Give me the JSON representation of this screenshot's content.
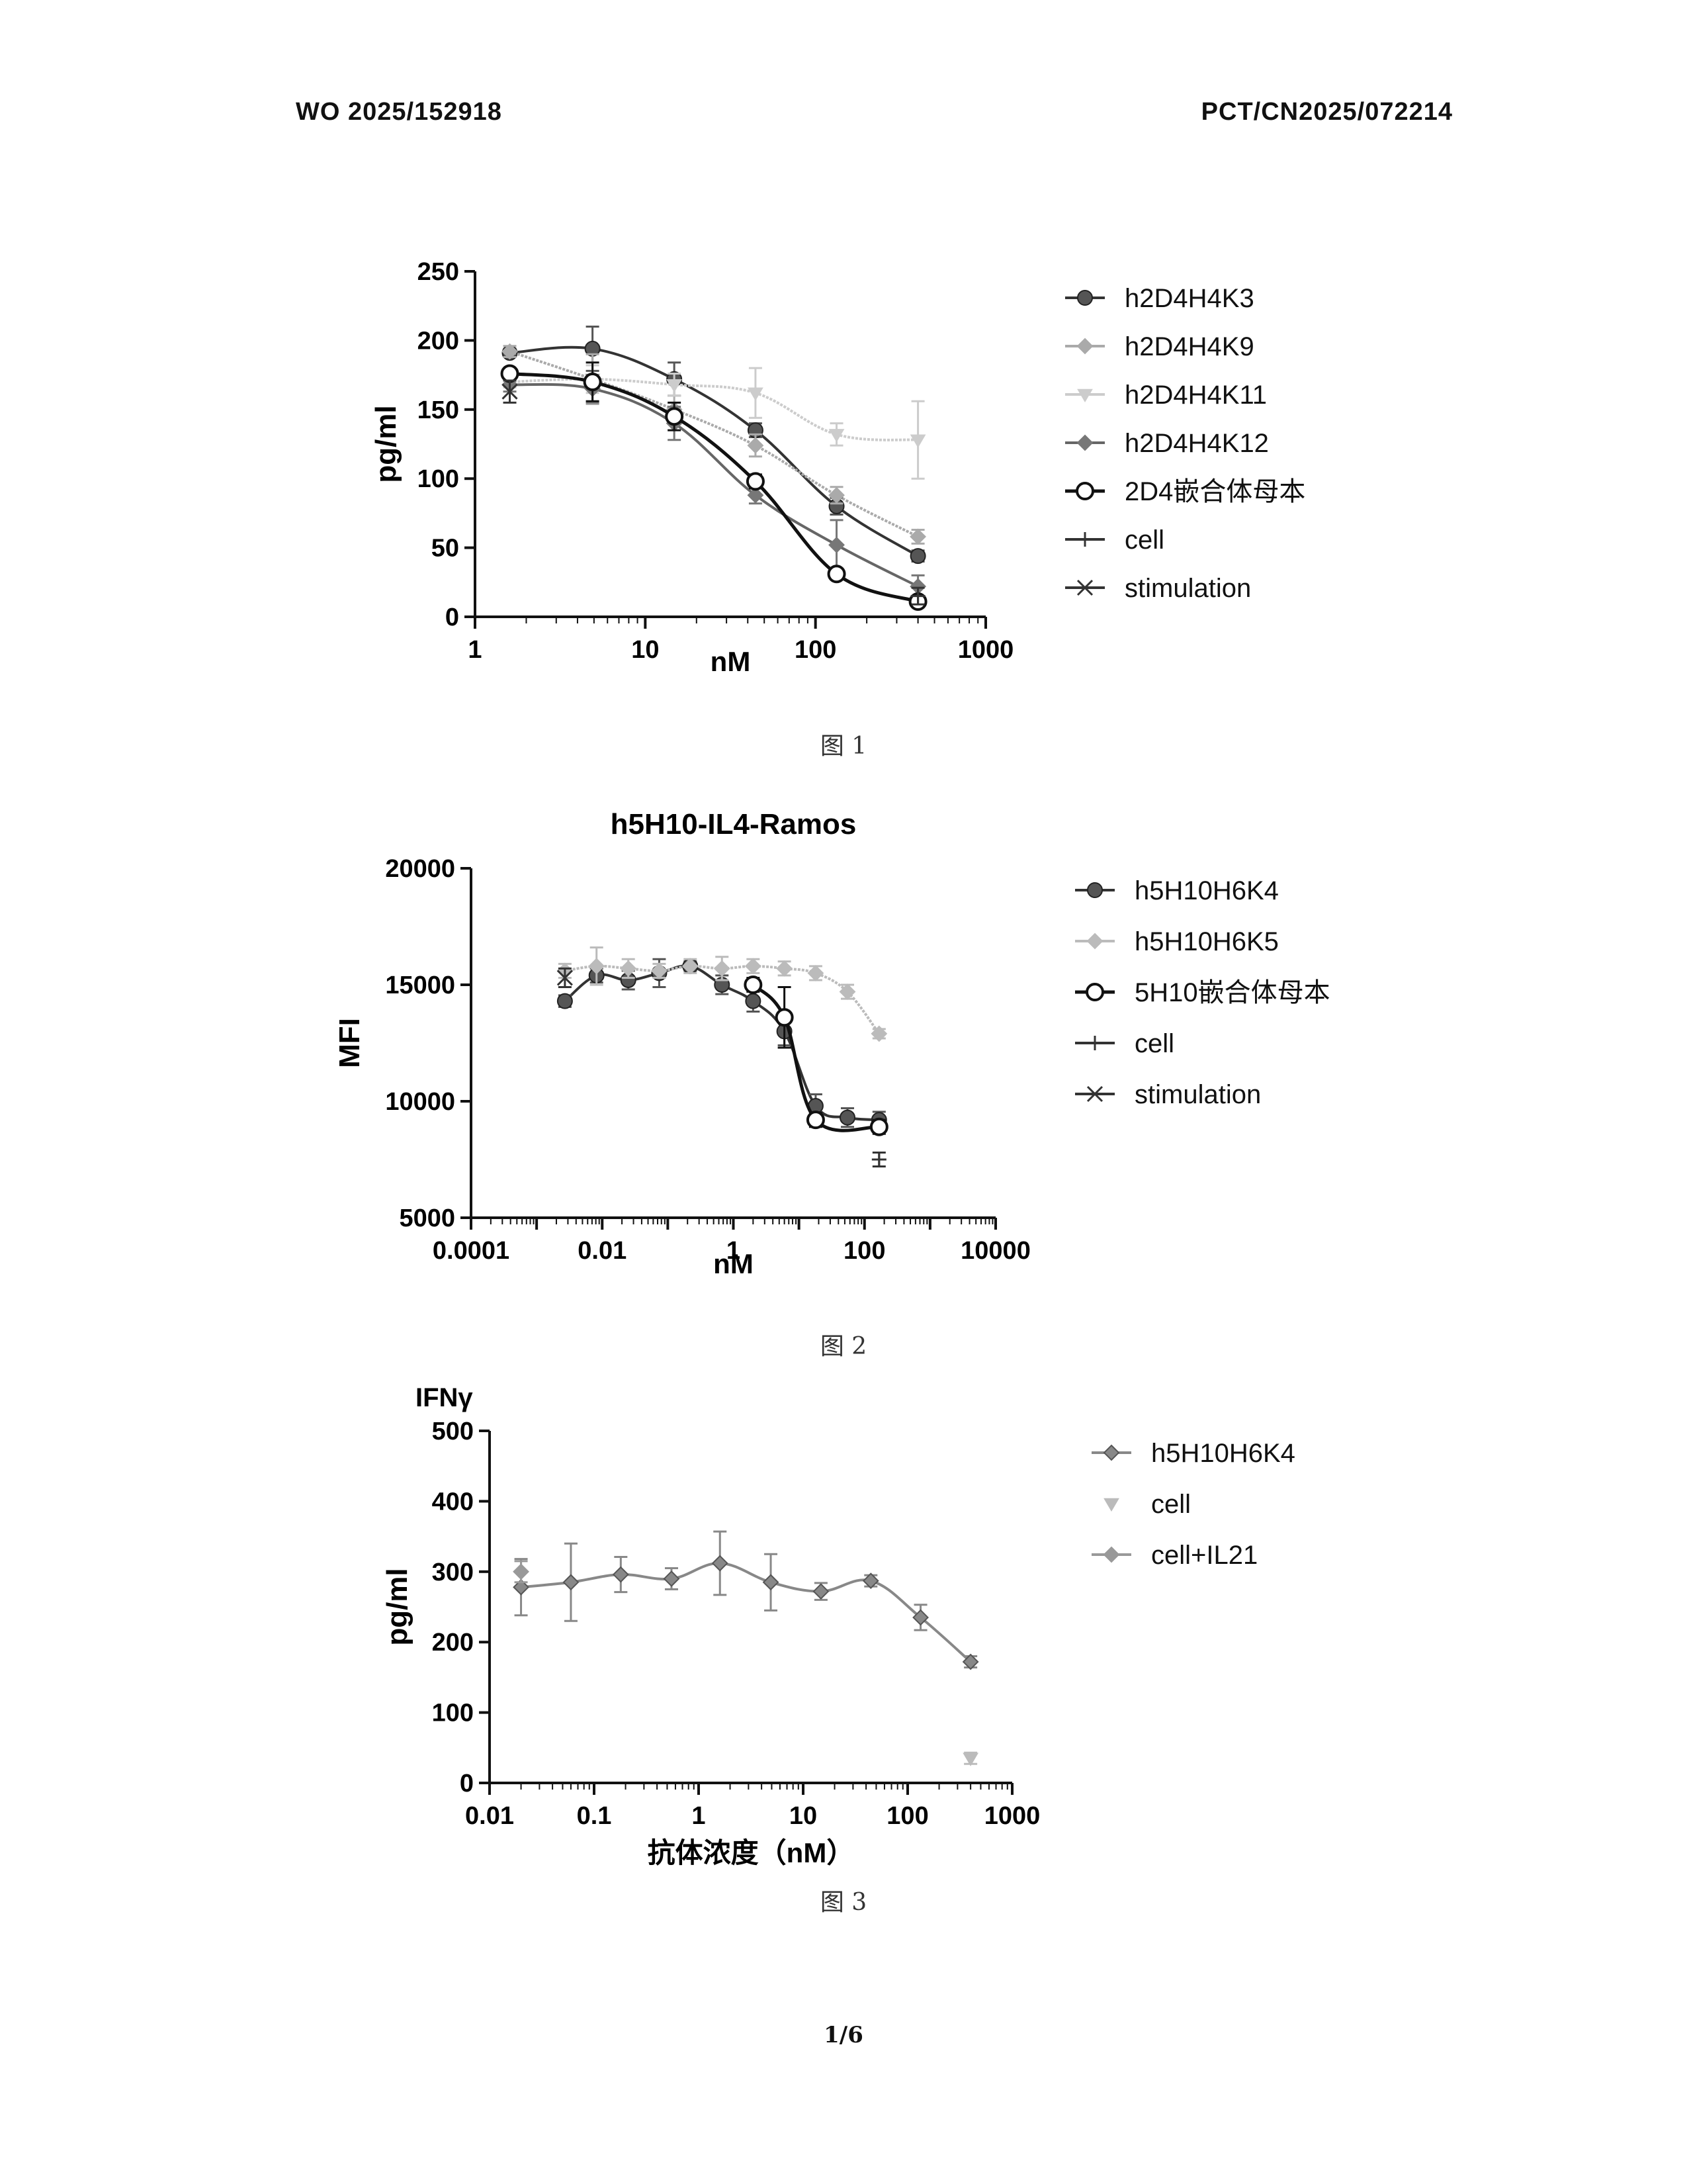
{
  "header": {
    "left": "WO 2025/152918",
    "right": "PCT/CN2025/072214"
  },
  "chart_data": [
    {
      "type": "line",
      "title": "",
      "xlabel": "nM",
      "ylabel": "pg/ml",
      "xscale": "log",
      "xlim": [
        1,
        1000
      ],
      "ylim": [
        0,
        250
      ],
      "xticks": [
        "1",
        "10",
        "100",
        "1000"
      ],
      "yticks": [
        "0",
        "50",
        "100",
        "150",
        "200",
        "250"
      ],
      "legend_position": "right",
      "fit": "four-parameter logistic fit curves through series",
      "x": [
        1.6,
        4.9,
        14.8,
        44.4,
        133,
        400
      ],
      "series": [
        {
          "name": "h2D4H4K3",
          "color": "#555555",
          "marker": "circle-hatched",
          "line": "#333333",
          "values": [
            191,
            194,
            172,
            135,
            80,
            44
          ],
          "errors": [
            3,
            16,
            12,
            5,
            6,
            4
          ]
        },
        {
          "name": "h2D4H4K9",
          "color": "#aaaaaa",
          "marker": "diamond",
          "line": "#aaaaaa",
          "values": [
            192,
            172,
            150,
            124,
            88,
            58
          ],
          "errors": [
            4,
            18,
            10,
            8,
            6,
            5
          ]
        },
        {
          "name": "h2D4H4K11",
          "color": "#cccccc",
          "marker": "triangle-down",
          "line": "#cccccc",
          "values": [
            170,
            172,
            168,
            162,
            132,
            128
          ],
          "errors": [
            4,
            10,
            8,
            18,
            8,
            28
          ]
        },
        {
          "name": "h2D4H4K12",
          "color": "#777777",
          "marker": "diamond",
          "line": "#666666",
          "values": [
            168,
            165,
            140,
            88,
            52,
            22
          ],
          "errors": [
            5,
            10,
            12,
            6,
            18,
            8
          ]
        },
        {
          "name": "2D4嵌合体母本",
          "color": "#111111",
          "marker": "circle-open",
          "line": "#111111",
          "values": [
            176,
            170,
            145,
            98,
            31,
            11
          ],
          "errors": [
            4,
            14,
            10,
            5,
            4,
            3
          ]
        },
        {
          "name": "cell",
          "color": "#333333",
          "marker": "plus",
          "line": "none",
          "values": [
            null,
            null,
            null,
            null,
            null,
            15
          ],
          "errors": [
            0,
            0,
            0,
            0,
            0,
            6
          ]
        },
        {
          "name": "stimulation",
          "color": "#333333",
          "marker": "x",
          "line": "none",
          "values": [
            163,
            null,
            null,
            null,
            null,
            null
          ],
          "errors": [
            8,
            0,
            0,
            0,
            0,
            0
          ]
        }
      ]
    },
    {
      "type": "line",
      "title": "h5H10-IL4-Ramos",
      "xlabel": "nM",
      "ylabel": "MFI",
      "xscale": "log",
      "xlim": [
        0.0001,
        10000
      ],
      "ylim": [
        5000,
        20000
      ],
      "xticks": [
        "0.0001",
        "0.01",
        "1",
        "100",
        "10000"
      ],
      "yticks": [
        "5000",
        "10000",
        "15000",
        "20000"
      ],
      "legend_position": "right",
      "x": [
        0.0027,
        0.0082,
        0.025,
        0.074,
        0.22,
        0.67,
        2.0,
        6.0,
        18,
        55,
        167
      ],
      "series": [
        {
          "name": "h5H10H6K4",
          "color": "#555555",
          "marker": "circle-hatched",
          "line": "#333333",
          "values": [
            14300,
            15400,
            15200,
            15500,
            15800,
            15000,
            14300,
            13000,
            9800,
            9300,
            9200
          ],
          "errors": [
            250,
            300,
            400,
            600,
            200,
            400,
            450,
            600,
            500,
            400,
            350
          ]
        },
        {
          "name": "h5H10H6K5",
          "color": "#bbbbbb",
          "marker": "diamond",
          "line": "#bbbbbb",
          "values": [
            15600,
            15800,
            15700,
            15600,
            15800,
            15700,
            15800,
            15700,
            15500,
            14700,
            12900
          ],
          "errors": [
            300,
            800,
            400,
            300,
            300,
            500,
            300,
            300,
            300,
            300,
            200
          ]
        },
        {
          "name": "5H10嵌合体母本",
          "color": "#111111",
          "marker": "circle-open",
          "line": "#111111",
          "values": [
            null,
            null,
            null,
            null,
            null,
            null,
            15000,
            13600,
            9200,
            null,
            8900
          ],
          "errors": [
            0,
            0,
            0,
            0,
            0,
            0,
            300,
            1300,
            300,
            0,
            300
          ]
        },
        {
          "name": "cell",
          "color": "#333333",
          "marker": "plus",
          "line": "none",
          "values": [
            null,
            null,
            null,
            null,
            null,
            null,
            null,
            null,
            null,
            null,
            7500
          ],
          "errors": [
            0,
            0,
            0,
            0,
            0,
            0,
            0,
            0,
            0,
            0,
            300
          ]
        },
        {
          "name": "stimulation",
          "color": "#333333",
          "marker": "x",
          "line": "none",
          "values": [
            15300,
            null,
            null,
            null,
            null,
            null,
            null,
            null,
            null,
            null,
            null
          ],
          "errors": [
            400,
            0,
            0,
            0,
            0,
            0,
            0,
            0,
            0,
            0,
            0
          ]
        }
      ]
    },
    {
      "type": "line",
      "title": "IFNγ",
      "xlabel": "抗体浓度（nM）",
      "ylabel": "pg/ml",
      "xscale": "log",
      "xlim": [
        0.01,
        1000
      ],
      "ylim": [
        0,
        500
      ],
      "xticks": [
        "0.01",
        "0.1",
        "1",
        "10",
        "100",
        "1000"
      ],
      "yticks": [
        "0",
        "100",
        "200",
        "300",
        "400",
        "500"
      ],
      "legend_position": "right",
      "x": [
        0.02,
        0.06,
        0.18,
        0.55,
        1.6,
        4.9,
        14.8,
        44.4,
        133,
        400
      ],
      "series": [
        {
          "name": "h5H10H6K4",
          "color": "#888888",
          "marker": "diamond-hatched",
          "line": "#888888",
          "values": [
            278,
            285,
            296,
            290,
            312,
            285,
            272,
            287,
            235,
            172
          ],
          "errors": [
            40,
            55,
            25,
            15,
            45,
            40,
            12,
            8,
            18,
            8
          ]
        },
        {
          "name": "cell",
          "color": "#bbbbbb",
          "marker": "triangle-down",
          "line": "none",
          "values": [
            null,
            null,
            null,
            null,
            null,
            null,
            null,
            null,
            null,
            35
          ],
          "errors": [
            0,
            0,
            0,
            0,
            0,
            0,
            0,
            0,
            0,
            8
          ]
        },
        {
          "name": "cell+IL21",
          "color": "#999999",
          "marker": "diamond",
          "line": "none",
          "values": [
            300,
            null,
            null,
            null,
            null,
            null,
            null,
            null,
            null,
            null
          ],
          "errors": [
            15,
            0,
            0,
            0,
            0,
            0,
            0,
            0,
            0,
            0
          ]
        }
      ]
    }
  ],
  "figure_labels": [
    "图 1",
    "图 2",
    "图 3"
  ],
  "page_number": "1/6"
}
